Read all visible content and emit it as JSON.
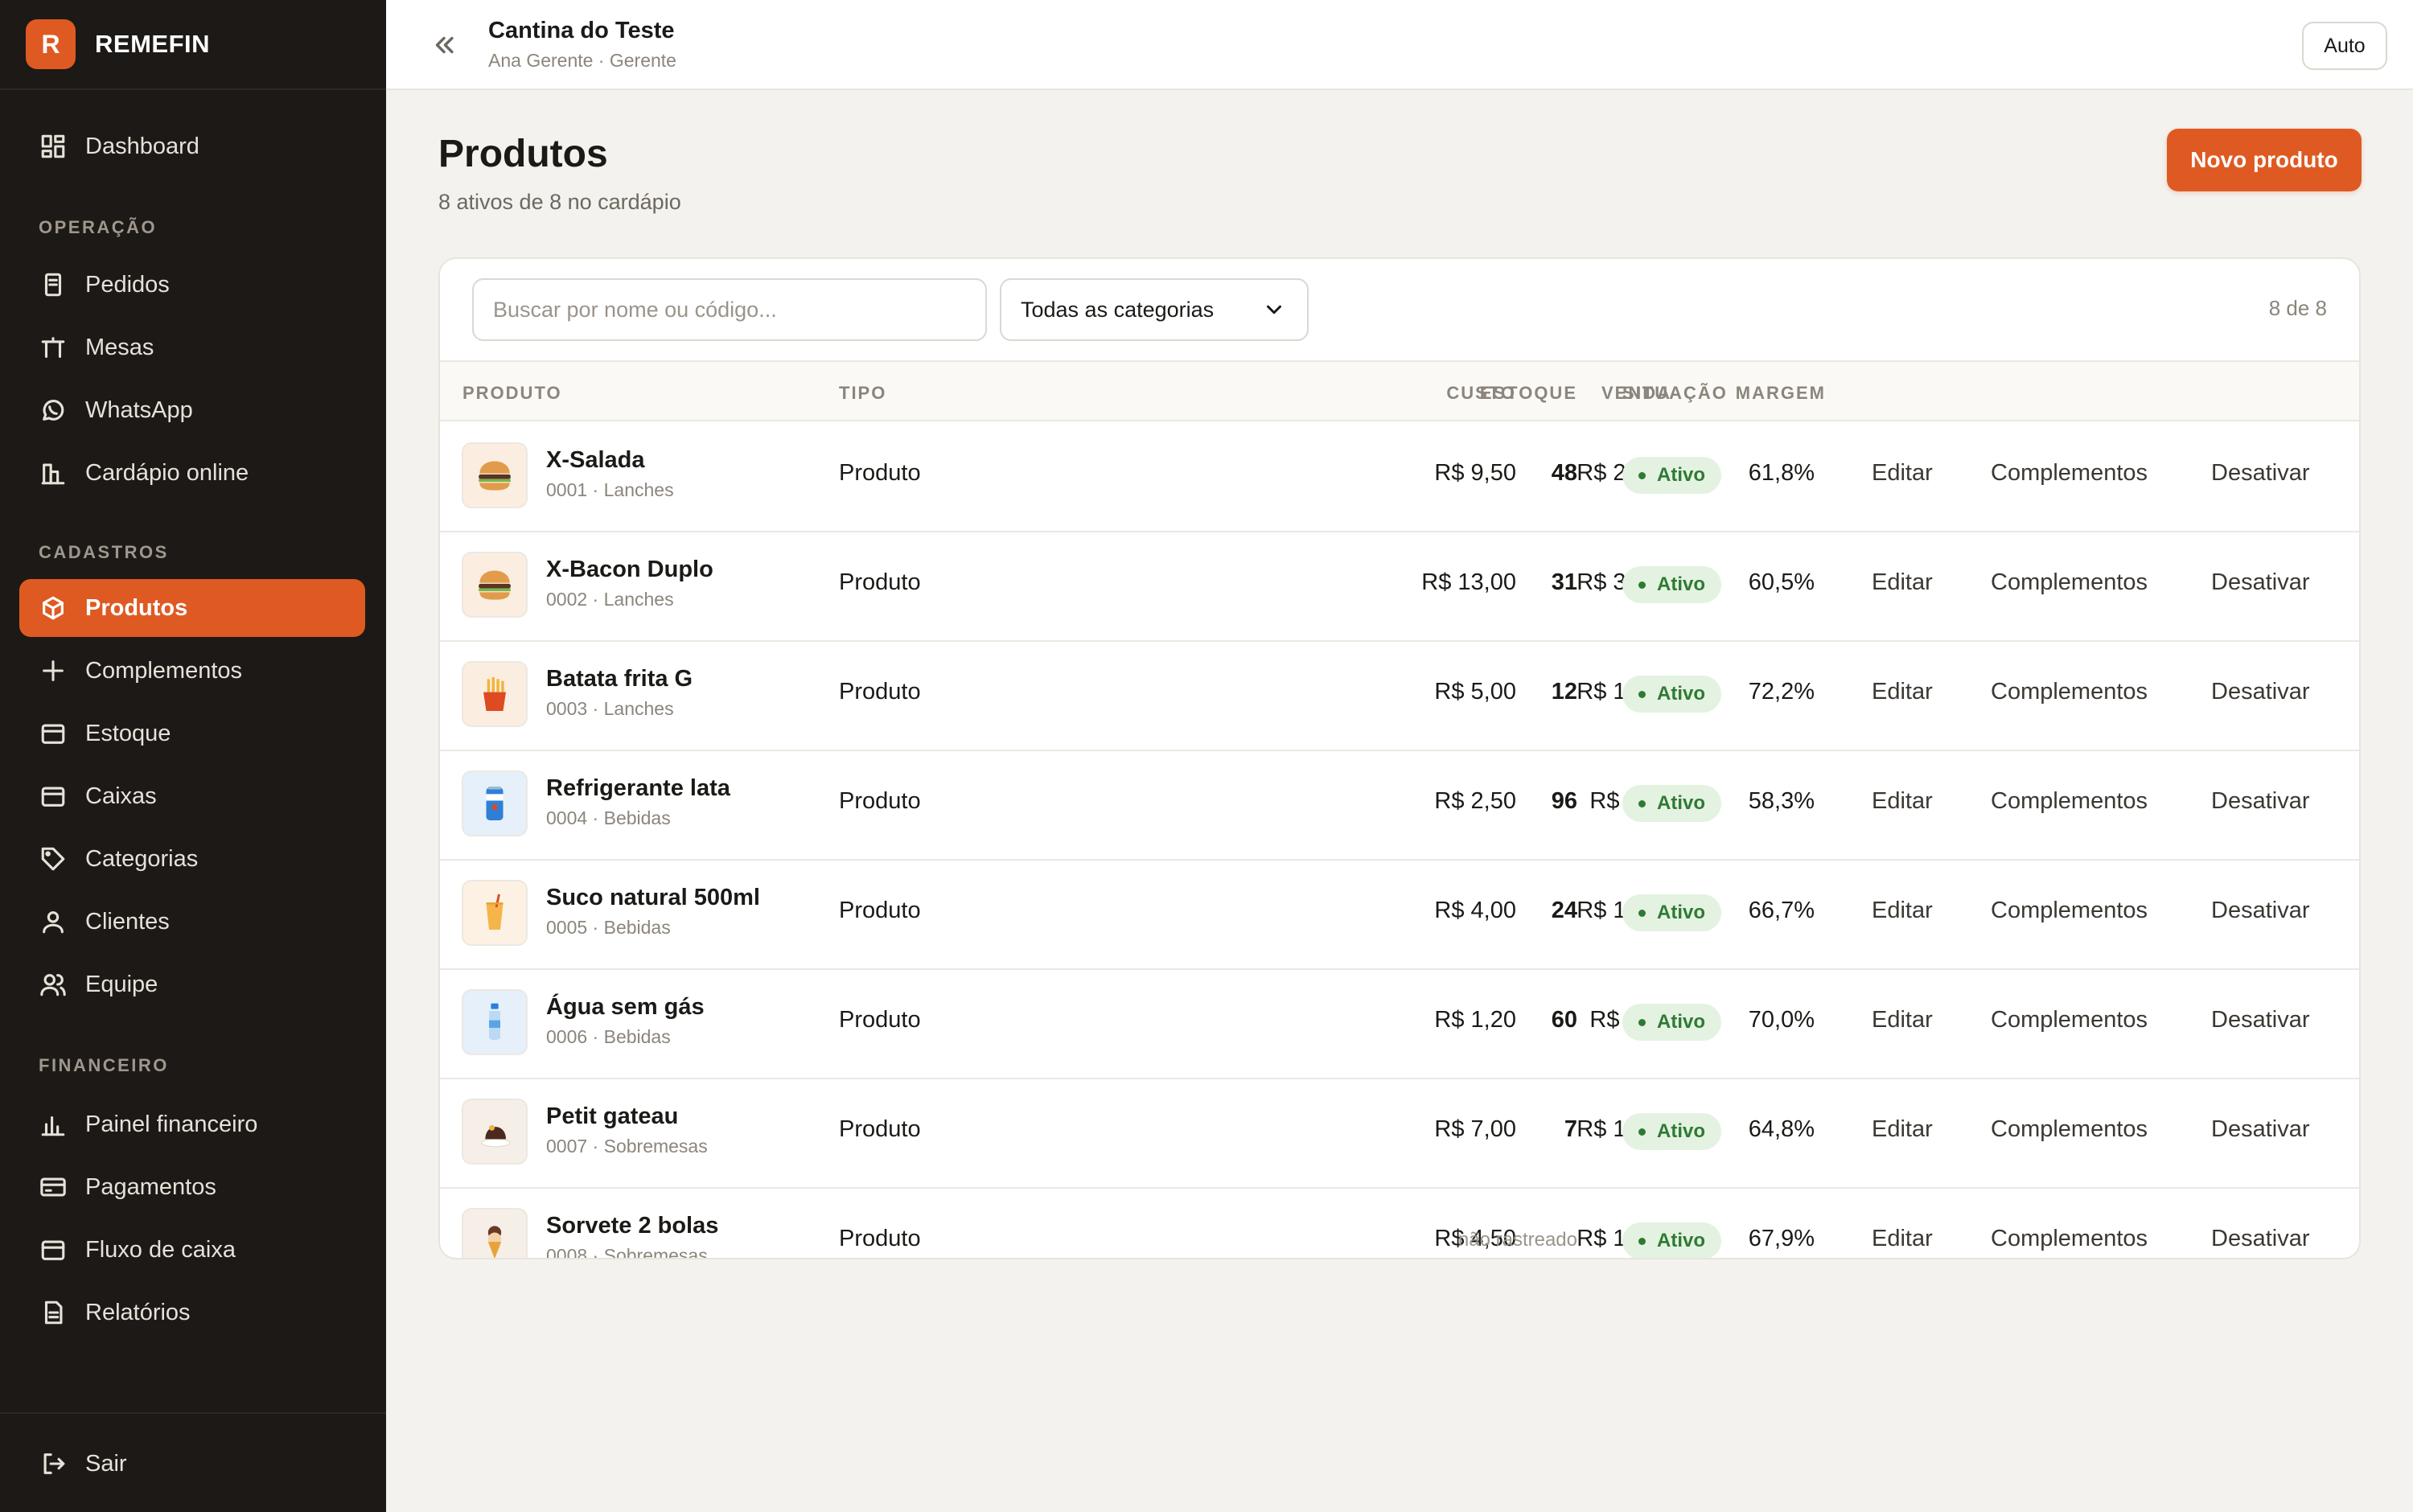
{
  "brand": {
    "logo_letter": "R",
    "name": "REMEFIN",
    "accent": "#de5a22"
  },
  "sidebar": {
    "dashboard": {
      "label": "Dashboard",
      "icon": "dashboard-icon"
    },
    "sections": [
      {
        "label": "OPERAÇÃO",
        "items": [
          {
            "label": "Pedidos",
            "icon": "receipt-icon"
          },
          {
            "label": "Mesas",
            "icon": "table-icon"
          },
          {
            "label": "WhatsApp",
            "icon": "whatsapp-icon"
          },
          {
            "label": "Cardápio online",
            "icon": "store-icon"
          }
        ]
      },
      {
        "label": "CADASTROS",
        "items": [
          {
            "label": "Produtos",
            "icon": "box-icon",
            "active": true
          },
          {
            "label": "Complementos",
            "icon": "plus-icon"
          },
          {
            "label": "Estoque",
            "icon": "stock-icon"
          },
          {
            "label": "Caixas",
            "icon": "cashbox-icon"
          },
          {
            "label": "Categorias",
            "icon": "tag-icon"
          },
          {
            "label": "Clientes",
            "icon": "user-icon"
          },
          {
            "label": "Equipe",
            "icon": "team-icon"
          }
        ]
      },
      {
        "label": "FINANCEIRO",
        "items": [
          {
            "label": "Painel financeiro",
            "icon": "bar-chart-icon"
          },
          {
            "label": "Pagamentos",
            "icon": "card-icon"
          },
          {
            "label": "Fluxo de caixa",
            "icon": "wallet-icon"
          },
          {
            "label": "Relatórios",
            "icon": "report-icon"
          }
        ]
      }
    ],
    "logout": {
      "label": "Sair",
      "icon": "logout-icon"
    }
  },
  "topbar": {
    "venue": "Cantina do Teste",
    "user": "Ana Gerente · Gerente",
    "theme_button": "Auto"
  },
  "page": {
    "title": "Produtos",
    "subtitle": "8 ativos de 8 no cardápio",
    "new_button": "Novo produto"
  },
  "filters": {
    "search_placeholder": "Buscar por nome ou código...",
    "category": "Todas as categorias",
    "count": "8 de 8"
  },
  "table": {
    "columns": [
      "PRODUTO",
      "TIPO",
      "CUSTO",
      "VENDA",
      "MARGEM",
      "ESTOQUE",
      "SITUAÇÃO"
    ],
    "actions": [
      "Editar",
      "Complementos",
      "Desativar"
    ],
    "rows": [
      {
        "name": "X-Salada",
        "meta": "0001 · Lanches",
        "type": "Produto",
        "cost": "R$ 9,50",
        "price": "R$ 24,90",
        "margin": "61,8%",
        "stock": "48",
        "status": "Ativo",
        "icon": "burger-icon"
      },
      {
        "name": "X-Bacon Duplo",
        "meta": "0002 · Lanches",
        "type": "Produto",
        "cost": "R$ 13,00",
        "price": "R$ 32,90",
        "margin": "60,5%",
        "stock": "31",
        "status": "Ativo",
        "icon": "burger-icon"
      },
      {
        "name": "Batata frita G",
        "meta": "0003 · Lanches",
        "type": "Produto",
        "cost": "R$ 5,00",
        "price": "R$ 18,00",
        "margin": "72,2%",
        "stock": "12",
        "status": "Ativo",
        "icon": "fries-icon"
      },
      {
        "name": "Refrigerante lata",
        "meta": "0004 · Bebidas",
        "type": "Produto",
        "cost": "R$ 2,50",
        "price": "R$ 6,00",
        "margin": "58,3%",
        "stock": "96",
        "status": "Ativo",
        "icon": "soda-can-icon"
      },
      {
        "name": "Suco natural 500ml",
        "meta": "0005 · Bebidas",
        "type": "Produto",
        "cost": "R$ 4,00",
        "price": "R$ 12,00",
        "margin": "66,7%",
        "stock": "24",
        "status": "Ativo",
        "icon": "juice-icon"
      },
      {
        "name": "Água sem gás",
        "meta": "0006 · Bebidas",
        "type": "Produto",
        "cost": "R$ 1,20",
        "price": "R$ 4,00",
        "margin": "70,0%",
        "stock": "60",
        "status": "Ativo",
        "icon": "water-bottle-icon"
      },
      {
        "name": "Petit gateau",
        "meta": "0007 · Sobremesas",
        "type": "Produto",
        "cost": "R$ 7,00",
        "price": "R$ 19,90",
        "margin": "64,8%",
        "stock": "7",
        "status": "Ativo",
        "icon": "cake-icon"
      },
      {
        "name": "Sorvete 2 bolas",
        "meta": "0008 · Sobremesas",
        "type": "Produto",
        "cost": "R$ 4,50",
        "price": "R$ 14,00",
        "margin": "67,9%",
        "stock": "não rastreado",
        "status": "Ativo",
        "icon": "ice-cream-icon"
      }
    ]
  }
}
